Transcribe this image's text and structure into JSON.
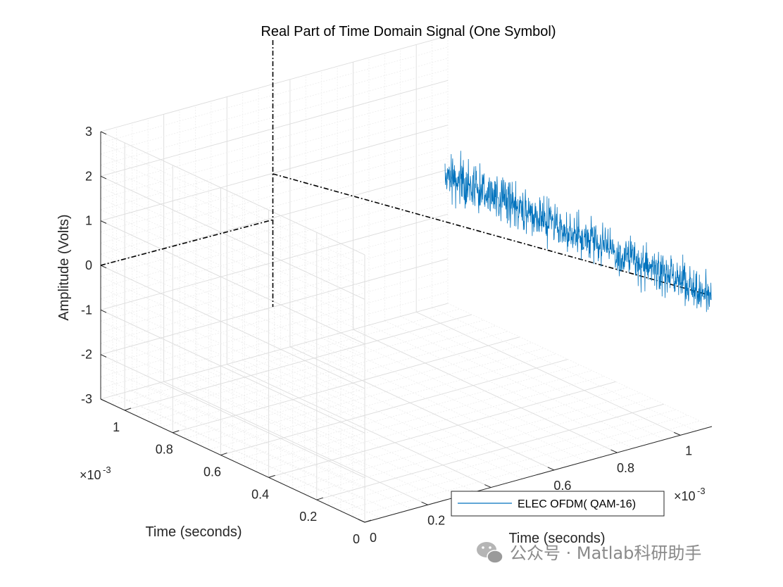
{
  "chart_data": {
    "type": "line",
    "title": "Real Part of Time Domain Signal (One Symbol)",
    "zlabel": "Amplitude (Volts)",
    "xlabel": "Time (seconds)",
    "ylabel": "Time (seconds)",
    "zlim": [
      -3,
      3
    ],
    "xlim": [
      0,
      0.0011
    ],
    "ylim": [
      0,
      0.0011
    ],
    "z_ticks": [
      "-3",
      "-2",
      "-1",
      "0",
      "1",
      "2",
      "3"
    ],
    "x_ticks": [
      "0",
      "0.2",
      "0.4",
      "0.6",
      "0.8",
      "1"
    ],
    "y_ticks": [
      "0",
      "0.2",
      "0.4",
      "0.6",
      "0.8",
      "1"
    ],
    "exponent_label": "×10",
    "exponent_power": "-3",
    "grid": true,
    "view": "3-D axes, default azimuth",
    "legend_position": "bottom-right",
    "series": [
      {
        "name": "ELEC OFDM( QAM-16)",
        "color": "#0072BD",
        "description_values": {
          "start_amplitude": 2.0,
          "end_amplitude": -0.7,
          "noise_peak_to_peak": 2.2
        }
      }
    ],
    "reference_lines": {
      "color": "#000000",
      "style": "dash-dot"
    }
  },
  "watermark": {
    "text": "公众号 · Matlab科研助手",
    "icon": "wechat-icon"
  }
}
